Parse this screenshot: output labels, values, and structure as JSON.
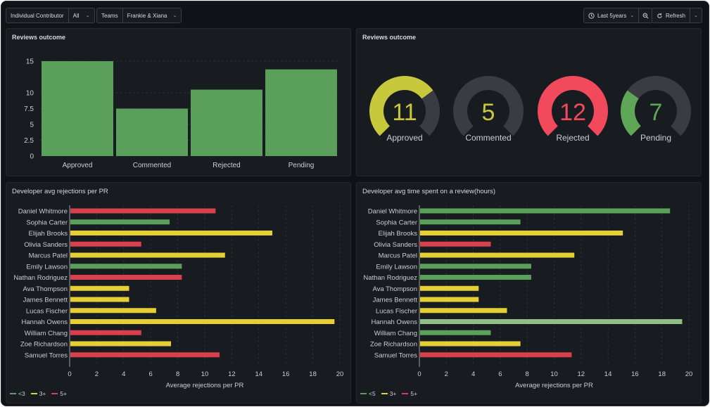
{
  "toolbar": {
    "contributor_label": "Individual Contributor",
    "contributor_value": "All",
    "teams_label": "Teams",
    "teams_value": "Frankie & Xiana",
    "time_range": "Last 5years",
    "refresh_label": "Refresh"
  },
  "colors": {
    "green": "#5ba05a",
    "yellow": "#e6cf35",
    "red": "#d9404d",
    "light_green": "#8fbf86",
    "gauge_yellow": "#c8c83c",
    "gauge_red": "#f2495c",
    "gauge_green": "#5ea757",
    "gauge_track": "#3a3c42"
  },
  "panels": {
    "reviews_bar": {
      "title": "Reviews outcome"
    },
    "reviews_gauge": {
      "title": "Reviews outcome"
    },
    "rejections": {
      "title": "Developer avg rejections per PR"
    },
    "time_spent": {
      "title": "Developer avg time spent on a review(hours)"
    }
  },
  "chart_data": [
    {
      "type": "bar",
      "title": "Reviews outcome",
      "categories": [
        "Approved",
        "Commented",
        "Rejected",
        "Pending"
      ],
      "values": [
        15,
        7.5,
        10.5,
        13.7
      ],
      "yticks": [
        "0",
        "2.5",
        "5",
        "7.5",
        "10",
        "15"
      ],
      "ylim": [
        0,
        15
      ],
      "grid": true
    },
    {
      "type": "gauge",
      "title": "Reviews outcome",
      "gauges": [
        {
          "label": "Approved",
          "value": "11",
          "fraction": 0.7,
          "color": "#c8c83c"
        },
        {
          "label": "Commented",
          "value": "5",
          "fraction": 0,
          "color": "#c8c83c"
        },
        {
          "label": "Rejected",
          "value": "12",
          "fraction": 1,
          "color": "#f2495c"
        },
        {
          "label": "Pending",
          "value": "7",
          "fraction": 0.3,
          "color": "#5ea757"
        }
      ]
    },
    {
      "type": "bar",
      "orientation": "horizontal",
      "title": "Developer avg rejections per PR",
      "xlabel": "Average rejections per PR",
      "xlim": [
        0,
        20
      ],
      "xticks": [
        "0",
        "2",
        "4",
        "6",
        "8",
        "10",
        "12",
        "14",
        "16",
        "18",
        "20"
      ],
      "categories": [
        "Daniel Whitmore",
        "Sophia Carter",
        "Elijah Brooks",
        "Olivia Sanders",
        "Marcus Patel",
        "Emily Lawson",
        "Nathan Rodriguez",
        "Ava Thompson",
        "James Bennett",
        "Lucas Fischer",
        "Hannah Owens",
        "William Chang",
        "Zoe Richardson",
        "Samuel Torres"
      ],
      "values": [
        10.8,
        7.4,
        15,
        5.3,
        11.5,
        8.3,
        8.3,
        4.4,
        4.4,
        6.4,
        19.6,
        5.3,
        7.5,
        11.1
      ],
      "bar_colors": [
        "red",
        "green",
        "yellow",
        "red",
        "yellow",
        "green",
        "red",
        "yellow",
        "yellow",
        "yellow",
        "yellow",
        "red",
        "yellow",
        "red"
      ],
      "legend": [
        {
          "label": "<3",
          "color": "green"
        },
        {
          "label": "3+",
          "color": "yellow"
        },
        {
          "label": "5+",
          "color": "red"
        }
      ],
      "grid": true
    },
    {
      "type": "bar",
      "orientation": "horizontal",
      "title": "Developer avg time spent on a review(hours)",
      "xlabel": "Average rejections per PR",
      "xlim": [
        0,
        20
      ],
      "xticks": [
        "0",
        "2",
        "4",
        "6",
        "8",
        "10",
        "12",
        "14",
        "16",
        "18",
        "20"
      ],
      "categories": [
        "Daniel Whitmore",
        "Sophia Carter",
        "Elijah Brooks",
        "Olivia Sanders",
        "Marcus Patel",
        "Emily Lawson",
        "Nathan Rodriguez",
        "Ava Thompson",
        "James Bennett",
        "Lucas Fischer",
        "Hannah Owens",
        "William Chang",
        "Zoe Richardson",
        "Samuel Torres"
      ],
      "values": [
        18.6,
        7.5,
        15.1,
        5.3,
        11.5,
        8.3,
        8.3,
        4.4,
        4.4,
        6.5,
        19.5,
        5.3,
        7.5,
        11.3
      ],
      "bar_colors": [
        "green",
        "green",
        "yellow",
        "red",
        "yellow",
        "green",
        "green",
        "yellow",
        "yellow",
        "yellow",
        "light_green",
        "green",
        "yellow",
        "red"
      ],
      "legend": [
        {
          "label": "<5",
          "color": "green"
        },
        {
          "label": "3+",
          "color": "yellow"
        },
        {
          "label": "5+",
          "color": "red"
        }
      ],
      "grid": true
    }
  ]
}
